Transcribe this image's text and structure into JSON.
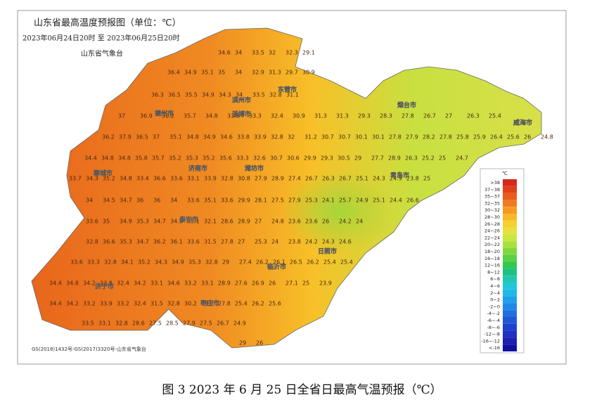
{
  "header": {
    "title": "山东省最高温度预报图（单位：℃）",
    "period": "2023年06月24日20时 至 2023年06月25日20时",
    "issuer": "山东省气象台"
  },
  "cities": [
    "东营市",
    "烟台市",
    "威海市",
    "德州市",
    "滨州市",
    "淄博市",
    "聊城市",
    "济南市",
    "潍坊市",
    "青岛市",
    "泰安市",
    "日照市",
    "临沂市",
    "济宁市",
    "枣庄市"
  ],
  "grid": {
    "rows": [
      [
        34.6,
        34,
        33.5,
        32,
        32.3,
        29.1
      ],
      [
        36.4,
        34.9,
        35.1,
        35,
        34,
        32.9,
        31.3,
        29.7,
        30.9
      ],
      [
        36.3,
        36.5,
        35.5,
        34.9,
        34.3,
        34,
        33.5,
        32.8,
        31.1
      ],
      [
        37,
        36.9,
        36.2,
        35.7,
        34.8,
        33.8,
        33.3,
        32.4,
        30.9,
        31.3,
        31.3,
        29.3,
        28.3,
        27.8,
        26.7,
        27,
        26.3,
        25.4
      ],
      [
        36.2,
        37.9,
        36.5,
        37,
        35.1,
        34.8,
        34.9,
        34.6,
        33.8,
        33.9,
        32.8,
        32,
        31.2,
        30.7,
        30.7,
        30.1,
        30.1,
        27.8,
        27.9,
        28.2,
        27.8,
        25.8,
        25.9,
        26.4,
        25.6,
        26,
        24.8
      ],
      [
        34.4,
        34.8,
        34.8,
        35.8,
        35.7,
        35.2,
        35.3,
        35.2,
        35.6,
        33.3,
        32.6,
        30.7,
        30.6,
        29.9,
        29.3,
        30.5,
        29,
        27.7,
        28.9,
        26.3,
        25.2,
        25,
        24.7
      ],
      [
        33.7,
        34.3,
        35.2,
        34.8,
        33.4,
        36.6,
        33.6,
        33.1,
        33.9,
        32.8,
        30.8,
        27.9,
        28.9,
        27.4,
        26.7,
        26.3,
        26.7,
        25.1,
        24.3,
        24.9,
        23.8,
        25
      ],
      [
        34,
        34.5,
        34.7,
        36,
        36,
        34,
        33.6,
        35.1,
        33.6,
        29.9,
        28.1,
        27.5,
        27.9,
        25.3,
        24.1,
        25.7,
        24.9,
        25.1,
        24.4,
        26.6
      ],
      [
        33.6,
        35,
        34.9,
        35.3,
        34.7,
        34.5,
        35.1,
        32.1,
        28.6,
        28.9,
        27,
        24.8,
        23.6,
        23.6,
        26,
        24.2,
        24
      ],
      [
        32.8,
        36.6,
        35.3,
        34.7,
        36.2,
        36.1,
        33.6,
        31.5,
        27.8,
        27,
        25.3,
        24,
        23.8,
        24.2,
        24.3,
        24.6
      ],
      [
        33.6,
        33.3,
        32.8,
        34.1,
        35.2,
        34.3,
        34.9,
        35.3,
        32.8,
        29,
        27.4,
        26.2,
        26.1,
        26.5,
        26.2,
        25.4,
        25.4
      ],
      [
        34.4,
        34.8,
        34.2,
        33.8,
        32.4,
        34.2,
        33.1,
        34.6,
        33.2,
        33.1,
        28.9,
        27.6,
        26.9,
        26,
        27.1,
        25,
        23.9
      ],
      [
        34.4,
        34.2,
        33.2,
        33.9,
        33.2,
        32.4,
        31.5,
        32.8,
        30.2,
        27.2,
        27.8,
        25.4,
        26.2,
        25.6
      ],
      [
        33.5,
        33.1,
        32.8,
        28.6,
        27.5,
        28.5,
        27.9,
        27.5,
        26.7,
        24.9
      ],
      [
        29,
        26
      ]
    ]
  },
  "legend": {
    "unit": "℃",
    "items": [
      {
        "label": ">38",
        "color": "#d42a1a"
      },
      {
        "label": "37~38",
        "color": "#e0401c"
      },
      {
        "label": "35~37",
        "color": "#ea5c1e"
      },
      {
        "label": "32~35",
        "color": "#f07a22"
      },
      {
        "label": "30~32",
        "color": "#f59a24"
      },
      {
        "label": "28~30",
        "color": "#f8b828"
      },
      {
        "label": "26~28",
        "color": "#f5d030"
      },
      {
        "label": "24~26",
        "color": "#e8e040"
      },
      {
        "label": "22~24",
        "color": "#c8e840"
      },
      {
        "label": "20~22",
        "color": "#a8e040"
      },
      {
        "label": "18~20",
        "color": "#80d840"
      },
      {
        "label": "16~18",
        "color": "#58d048"
      },
      {
        "label": "12~16",
        "color": "#30c850"
      },
      {
        "label": "8~12",
        "color": "#20c080"
      },
      {
        "label": "6~8",
        "color": "#20c8b0"
      },
      {
        "label": "4~6",
        "color": "#20c8d8"
      },
      {
        "label": "2~4",
        "color": "#20b8e8"
      },
      {
        "label": "0~2",
        "color": "#20a0e8"
      },
      {
        "label": "-2~0",
        "color": "#2088e8"
      },
      {
        "label": "-4~-2",
        "color": "#2070e0"
      },
      {
        "label": "-6~-4",
        "color": "#2058d8"
      },
      {
        "label": "-8~-6",
        "color": "#2040d0"
      },
      {
        "label": "-12~-8",
        "color": "#2030c0"
      },
      {
        "label": "-16~-12",
        "color": "#2020b0"
      },
      {
        "label": "<-16",
        "color": "#1010a0"
      }
    ]
  },
  "footer": "GS(2018)1432号-GS(2017)3320号-山东省气象台",
  "caption": "图 3 2023 年 6 月 25 日全省日最高气温预报（℃）"
}
